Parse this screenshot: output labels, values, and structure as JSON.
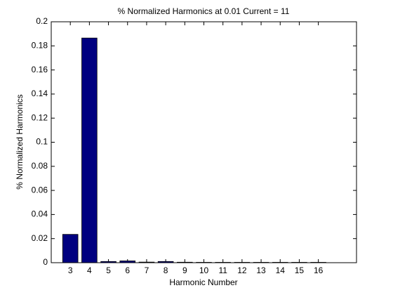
{
  "chart_data": {
    "type": "bar",
    "title": "% Normalized Harmonics at 0.01 Current = 11",
    "xlabel": "Harmonic Number",
    "ylabel": "% Normalized Harmonics",
    "x": [
      3,
      4,
      5,
      6,
      7,
      8,
      9,
      10,
      11,
      12,
      13,
      14,
      15,
      16
    ],
    "values": [
      0.0235,
      0.1865,
      0.001,
      0.0015,
      0.0005,
      0.001,
      0.0004,
      0.0003,
      0.0003,
      0.0003,
      0.0003,
      0.0003,
      0.0003,
      0.0003
    ],
    "color": "#000080",
    "xlim": [
      2,
      18
    ],
    "xticks": [
      3,
      4,
      5,
      6,
      7,
      8,
      9,
      10,
      11,
      12,
      13,
      14,
      15,
      16
    ],
    "ylim": [
      0,
      0.2
    ],
    "yticks": [
      0,
      0.02,
      0.04,
      0.06,
      0.08,
      0.1,
      0.12,
      0.14,
      0.16,
      0.18,
      0.2
    ],
    "grid": false
  }
}
